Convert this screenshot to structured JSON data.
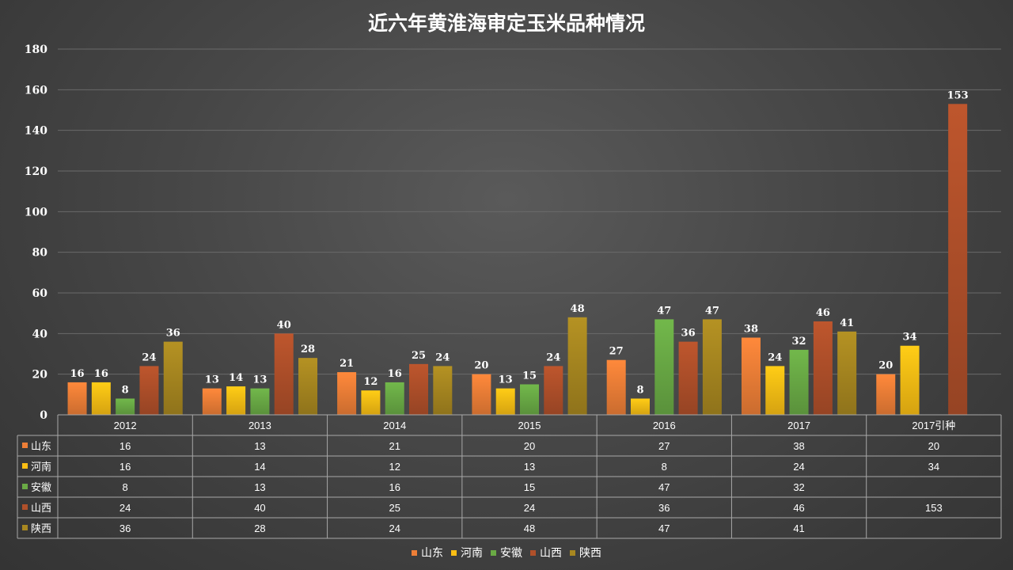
{
  "chart_data": {
    "type": "bar",
    "title": "近六年黄淮海审定玉米品种情况",
    "categories": [
      "2012",
      "2013",
      "2014",
      "2015",
      "2016",
      "2017",
      "2017引种"
    ],
    "series": [
      {
        "name": "山东",
        "color": "#ee7f37",
        "values": [
          16,
          13,
          21,
          20,
          27,
          38,
          20
        ]
      },
      {
        "name": "河南",
        "color": "#fbbe14",
        "values": [
          16,
          14,
          12,
          13,
          8,
          24,
          34
        ]
      },
      {
        "name": "安徽",
        "color": "#6aaa45",
        "values": [
          8,
          13,
          16,
          15,
          47,
          32,
          null
        ]
      },
      {
        "name": "山西",
        "color": "#b0502a",
        "values": [
          24,
          40,
          25,
          24,
          36,
          46,
          153
        ]
      },
      {
        "name": "陕西",
        "color": "#a88720",
        "values": [
          36,
          28,
          24,
          48,
          47,
          41,
          null
        ]
      }
    ],
    "ylim": [
      0,
      180
    ],
    "yticks": [
      0,
      20,
      40,
      60,
      80,
      100,
      120,
      140,
      160,
      180
    ],
    "grid": true,
    "data_labels": true,
    "data_table": true,
    "legend_position": "bottom"
  }
}
